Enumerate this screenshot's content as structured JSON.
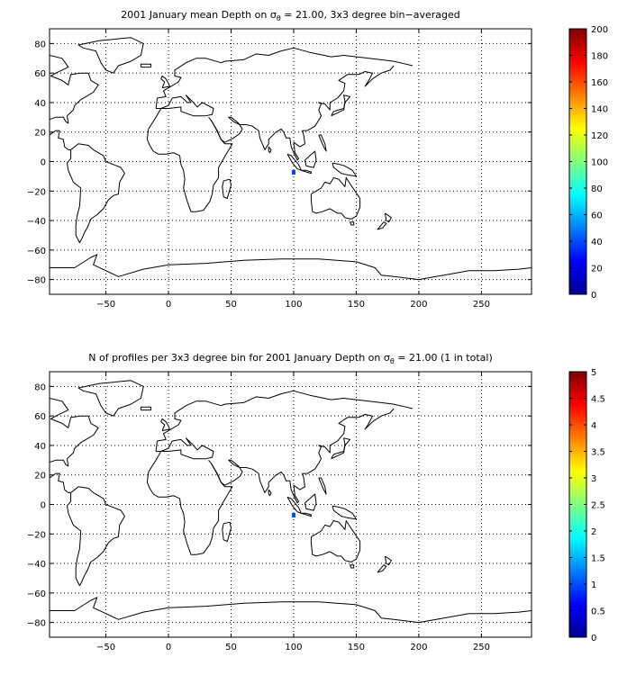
{
  "chart_data": [
    {
      "type": "heatmap",
      "title_prefix": "2001 January mean Depth on ",
      "title_symbol": "σ",
      "title_subscript": "θ",
      "title_suffix": " = 21.00, 3x3 degree bin−averaged",
      "xlim": [
        -95,
        290
      ],
      "ylim": [
        -90,
        90
      ],
      "xticks": [
        -50,
        0,
        50,
        100,
        150,
        200,
        250
      ],
      "yticks": [
        80,
        60,
        40,
        20,
        0,
        -20,
        -40,
        -60,
        -80
      ],
      "grid": true,
      "colorbar": {
        "min": 0,
        "max": 200,
        "ticks": [
          "0",
          "20",
          "40",
          "60",
          "80",
          "100",
          "120",
          "140",
          "160",
          "180",
          "200"
        ],
        "colormap": "jet"
      },
      "points": [
        {
          "lon": 100,
          "lat": -7,
          "value": 38
        }
      ]
    },
    {
      "type": "heatmap",
      "title_prefix": "N of profiles per 3x3 degree bin for 2001 January Depth on ",
      "title_symbol": "σ",
      "title_subscript": "θ",
      "title_suffix": " = 21.00 (1 in total)",
      "xlim": [
        -95,
        290
      ],
      "ylim": [
        -90,
        90
      ],
      "xticks": [
        -50,
        0,
        50,
        100,
        150,
        200,
        250
      ],
      "yticks": [
        80,
        60,
        40,
        20,
        0,
        -20,
        -40,
        -60,
        -80
      ],
      "grid": true,
      "colorbar": {
        "min": 0,
        "max": 5,
        "ticks": [
          "0",
          "0.5",
          "1",
          "1.5",
          "2",
          "2.5",
          "3",
          "3.5",
          "4",
          "4.5",
          "5"
        ],
        "colormap": "jet"
      },
      "points": [
        {
          "lon": 100,
          "lat": -7,
          "value": 1
        }
      ]
    }
  ]
}
